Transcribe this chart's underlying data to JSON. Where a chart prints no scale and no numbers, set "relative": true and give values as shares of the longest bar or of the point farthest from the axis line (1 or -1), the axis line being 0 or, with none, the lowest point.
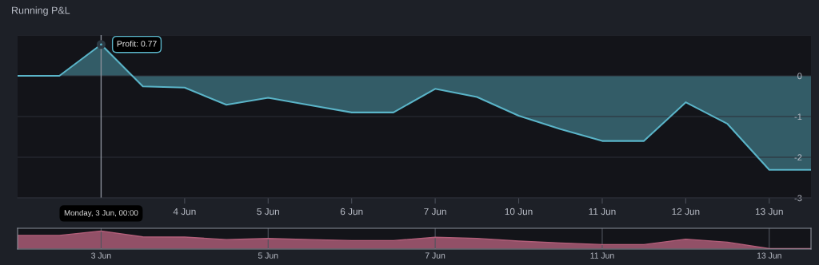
{
  "chart_data": [
    {
      "type": "area",
      "title": "Running P&L",
      "categories": [
        null,
        null,
        null,
        null,
        "4 Jun",
        null,
        "5 Jun",
        null,
        "6 Jun",
        null,
        "7 Jun",
        null,
        "10 Jun",
        null,
        "11 Jun",
        null,
        "12 Jun",
        null,
        "13 Jun",
        null
      ],
      "series": [
        {
          "color": "#5ab4c8",
          "values": [
            0,
            0,
            0.77,
            -0.26,
            -0.29,
            -0.71,
            -0.54,
            -0.72,
            -0.9,
            -0.9,
            -0.32,
            -0.52,
            -0.98,
            -1.31,
            -1.6,
            -1.6,
            -0.65,
            -1.18,
            -2.31,
            -2.31
          ]
        }
      ],
      "ylim": [
        -3,
        1
      ],
      "yticks": [
        {
          "value": 1,
          "label": null
        },
        0,
        -1,
        -2,
        -3
      ],
      "grid": "y",
      "annotations": [
        "Profit: 0.77",
        "Monday, 3 Jun, 00:00"
      ]
    },
    {
      "type": "area",
      "categories": [
        null,
        null,
        "3 Jun",
        null,
        null,
        null,
        "5 Jun",
        null,
        null,
        null,
        "7 Jun",
        null,
        null,
        null,
        "11 Jun",
        null,
        null,
        null,
        "13 Jun",
        null
      ],
      "series": [
        {
          "color": "#b35f7a",
          "values": [
            0.75,
            0.75,
            1,
            0.666,
            0.656,
            0.513,
            0.575,
            0.516,
            0.458,
            0.458,
            0.646,
            0.581,
            0.432,
            0.325,
            0.231,
            0.231,
            0.539,
            0.367,
            0,
            0
          ]
        }
      ],
      "relative": true,
      "tick_labels": "x",
      "grid": "x"
    }
  ]
}
